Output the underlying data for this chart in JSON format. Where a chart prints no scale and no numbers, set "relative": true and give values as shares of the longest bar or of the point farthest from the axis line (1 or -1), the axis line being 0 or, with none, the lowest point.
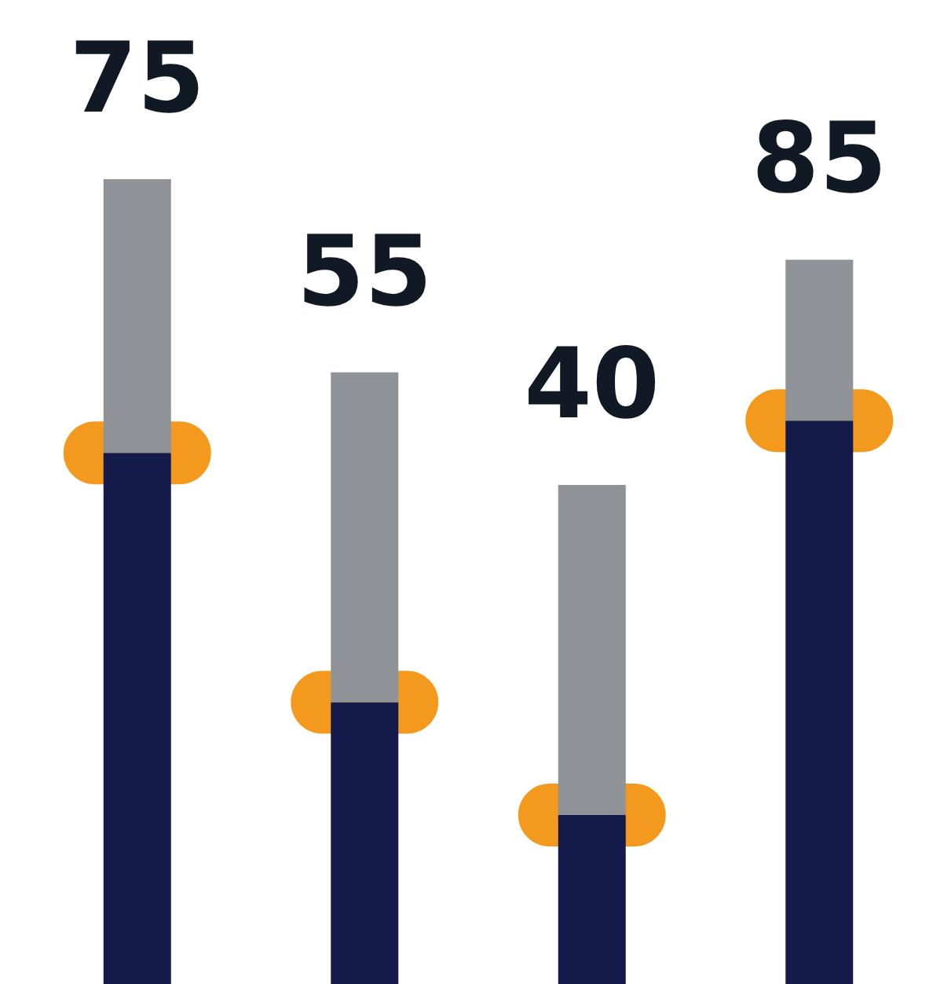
{
  "chart_data": {
    "type": "bar",
    "relative": true,
    "stacked": true,
    "categories": [
      null,
      null,
      null,
      null
    ],
    "series": [
      {
        "color": "#141a4a",
        "values": [
          0.66,
          0.35,
          0.21,
          0.7
        ]
      },
      {
        "color": "#8f9296",
        "values": [
          0.34,
          0.41,
          0.41,
          0.2
        ]
      }
    ],
    "annotations": [
      "75",
      "55",
      "40",
      "85"
    ]
  }
}
